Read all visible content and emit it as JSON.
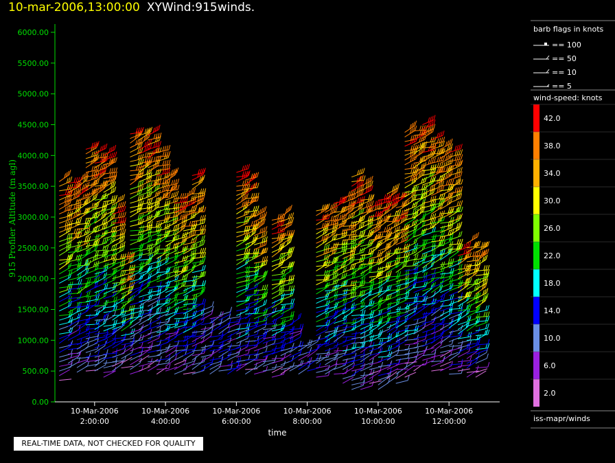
{
  "title": {
    "datetime": "10-mar-2006,13:00:00",
    "product": "XYWind:915winds."
  },
  "footer_note": "REAL-TIME DATA, NOT CHECKED FOR QUALITY",
  "legend": {
    "barb_title": "barb flags in knots",
    "barb_entries": [
      "== 100",
      "== 50",
      "== 10",
      "== 5"
    ],
    "speed_title": "wind-speed: knots",
    "speed_scale": [
      {
        "label": "42.0",
        "color": "#ff0000"
      },
      {
        "label": "38.0",
        "color": "#ff7f00"
      },
      {
        "label": "34.0",
        "color": "#ffb000"
      },
      {
        "label": "30.0",
        "color": "#ffff00"
      },
      {
        "label": "26.0",
        "color": "#7fff00"
      },
      {
        "label": "22.0",
        "color": "#00e000"
      },
      {
        "label": "18.0",
        "color": "#00ffff"
      },
      {
        "label": "14.0",
        "color": "#0000ff"
      },
      {
        "label": "10.0",
        "color": "#6a8fe6"
      },
      {
        "label": "6.0",
        "color": "#9a20e0"
      },
      {
        "label": "2.0",
        "color": "#e070e0"
      }
    ],
    "source": "iss-mapr/winds"
  },
  "chart_data": {
    "type": "scatter",
    "xlabel": "time",
    "ylabel": "915 Profiler Altitude (m agl)",
    "ylim": [
      0,
      6000
    ],
    "yticks": [
      "0.00",
      "500.00",
      "1000.00",
      "1500.00",
      "2000.00",
      "2500.00",
      "3000.00",
      "3500.00",
      "4000.00",
      "4500.00",
      "5000.00",
      "5500.00",
      "6000.00"
    ],
    "xticks": [
      {
        "date": "10-Mar-2006",
        "time": "2:00:00",
        "hour": 2
      },
      {
        "date": "10-Mar-2006",
        "time": "4:00:00",
        "hour": 4
      },
      {
        "date": "10-Mar-2006",
        "time": "6:00:00",
        "hour": 6
      },
      {
        "date": "10-Mar-2006",
        "time": "8:00:00",
        "hour": 8
      },
      {
        "date": "10-Mar-2006",
        "time": "10:00:00",
        "hour": 10
      },
      {
        "date": "10-Mar-2006",
        "time": "12:00:00",
        "hour": 12
      }
    ],
    "xlim_hours": [
      0.88,
      13.43
    ],
    "axis_color": "#00e000",
    "profiles": [
      {
        "time": 1.0,
        "base": 350,
        "top": 3600
      },
      {
        "time": 1.25,
        "base": 550,
        "top": 3550
      },
      {
        "time": 1.5,
        "base": 480,
        "top": 3600
      },
      {
        "time": 1.75,
        "base": 500,
        "top": 4100
      },
      {
        "time": 2.0,
        "base": 500,
        "top": 4050
      },
      {
        "time": 2.25,
        "base": 400,
        "top": 4000
      },
      {
        "time": 2.5,
        "base": 500,
        "top": 3200
      },
      {
        "time": 2.75,
        "base": 550,
        "top": 2400
      },
      {
        "time": 3.0,
        "base": 450,
        "top": 4400
      },
      {
        "time": 3.25,
        "base": 500,
        "top": 4350
      },
      {
        "time": 3.5,
        "base": 500,
        "top": 4350
      },
      {
        "time": 3.75,
        "base": 450,
        "top": 4050
      },
      {
        "time": 4.0,
        "base": 500,
        "top": 3700
      },
      {
        "time": 4.25,
        "base": 450,
        "top": 3300
      },
      {
        "time": 4.5,
        "base": 450,
        "top": 3350
      },
      {
        "time": 4.75,
        "base": 450,
        "top": 3700
      },
      {
        "time": 5.0,
        "base": 500,
        "top": 1500
      },
      {
        "time": 5.25,
        "base": 450,
        "top": 1400
      },
      {
        "time": 5.5,
        "base": 500,
        "top": 1400
      },
      {
        "time": 5.75,
        "base": 450,
        "top": 1400
      },
      {
        "time": 6.0,
        "base": 500,
        "top": 3750
      },
      {
        "time": 6.25,
        "base": 450,
        "top": 3650
      },
      {
        "time": 6.5,
        "base": 450,
        "top": 3000
      },
      {
        "time": 6.75,
        "base": 500,
        "top": 1500
      },
      {
        "time": 7.0,
        "base": 400,
        "top": 3000
      },
      {
        "time": 7.25,
        "base": 450,
        "top": 3000
      },
      {
        "time": 7.5,
        "base": 500,
        "top": 1300
      },
      {
        "time": 7.75,
        "base": 450,
        "top": 900
      },
      {
        "time": 8.0,
        "base": 500,
        "top": 1000
      },
      {
        "time": 8.25,
        "base": 400,
        "top": 3100
      },
      {
        "time": 8.5,
        "base": 450,
        "top": 3100
      },
      {
        "time": 8.75,
        "base": 450,
        "top": 3250
      },
      {
        "time": 9.0,
        "base": 300,
        "top": 3300
      },
      {
        "time": 9.25,
        "base": 200,
        "top": 3700
      },
      {
        "time": 9.5,
        "base": 200,
        "top": 3550
      },
      {
        "time": 9.75,
        "base": 300,
        "top": 3200
      },
      {
        "time": 10.0,
        "base": 200,
        "top": 3300
      },
      {
        "time": 10.25,
        "base": 300,
        "top": 3400
      },
      {
        "time": 10.5,
        "base": 300,
        "top": 3300
      },
      {
        "time": 10.75,
        "base": 400,
        "top": 4400
      },
      {
        "time": 11.0,
        "base": 500,
        "top": 4450
      },
      {
        "time": 11.25,
        "base": 600,
        "top": 4500
      },
      {
        "time": 11.5,
        "base": 500,
        "top": 4300
      },
      {
        "time": 11.75,
        "base": 500,
        "top": 4100
      },
      {
        "time": 12.0,
        "base": 450,
        "top": 4100
      },
      {
        "time": 12.25,
        "base": 500,
        "top": 2500
      },
      {
        "time": 12.5,
        "base": 400,
        "top": 2600
      },
      {
        "time": 12.75,
        "base": 400,
        "top": 2500
      }
    ]
  }
}
